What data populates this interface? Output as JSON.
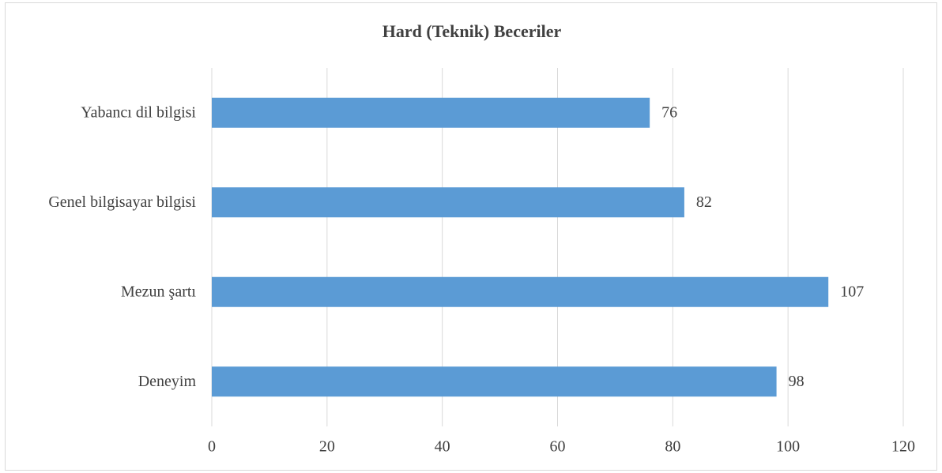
{
  "chart_data": {
    "type": "barh",
    "title": "Hard (Teknik) Beceriler",
    "categories": [
      "Yabancı dil bilgisi",
      "Genel bilgisayar bilgisi",
      "Mezun şartı",
      "Deneyim"
    ],
    "values": [
      76,
      82,
      107,
      98
    ],
    "color": "#5b9bd5",
    "xlim": [
      0,
      120
    ],
    "xticks": [
      0,
      20,
      40,
      60,
      80,
      100,
      120
    ],
    "grid": true
  }
}
